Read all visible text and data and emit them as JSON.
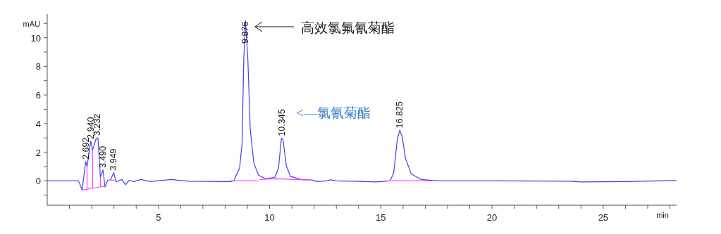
{
  "chart_data": {
    "type": "line",
    "xlabel": "min",
    "ylabel": "mAU",
    "xlim": [
      0,
      28.3
    ],
    "ylim": [
      -1.7,
      11.65
    ],
    "xticks": [
      {
        "value": 1,
        "label": null
      },
      {
        "value": 2,
        "label": null
      },
      {
        "value": 3,
        "label": null
      },
      {
        "value": 4,
        "label": null
      },
      5,
      {
        "value": 6,
        "label": null
      },
      {
        "value": 7,
        "label": null
      },
      {
        "value": 8,
        "label": null
      },
      {
        "value": 9,
        "label": null
      },
      10,
      {
        "value": 11,
        "label": null
      },
      {
        "value": 12,
        "label": null
      },
      {
        "value": 13,
        "label": null
      },
      {
        "value": 14,
        "label": null
      },
      15,
      {
        "value": 16,
        "label": null
      },
      {
        "value": 17,
        "label": null
      },
      {
        "value": 18,
        "label": null
      },
      {
        "value": 19,
        "label": null
      },
      20,
      {
        "value": 21,
        "label": null
      },
      {
        "value": 22,
        "label": null
      },
      {
        "value": 23,
        "label": null
      },
      {
        "value": 24,
        "label": null
      },
      25,
      {
        "value": 26,
        "label": null
      },
      {
        "value": 27,
        "label": null
      },
      {
        "value": 28,
        "label": null
      }
    ],
    "yticks": [
      {
        "value": -1,
        "label": null
      },
      0,
      {
        "value": 1,
        "label": null
      },
      2,
      {
        "value": 3,
        "label": null
      },
      4,
      {
        "value": 5,
        "label": null
      },
      6,
      {
        "value": 7,
        "label": null
      },
      8,
      {
        "value": 9,
        "label": null
      },
      10,
      {
        "value": 11,
        "label": null
      }
    ],
    "series": [
      {
        "color": "#4040f0",
        "x": [
          0,
          1.41,
          1.57,
          1.73,
          1.79,
          1.96,
          2.04,
          2.2,
          2.28,
          2.39,
          2.51,
          2.6,
          2.72,
          2.84,
          2.99,
          3.1,
          3.36,
          3.52,
          3.68,
          3.9,
          4.21,
          4.63,
          5.58,
          6.33,
          8.23,
          8.39,
          8.65,
          8.76,
          8.84,
          8.91,
          9.02,
          9.13,
          9.29,
          9.5,
          9.82,
          10.24,
          10.4,
          10.53,
          10.6,
          10.75,
          10.93,
          11.4,
          11.93,
          12.14,
          12.57,
          12.73,
          13.0,
          14.79,
          15.42,
          15.58,
          15.74,
          15.85,
          15.96,
          16.11,
          16.37,
          16.8,
          17.54,
          20,
          23.5,
          24,
          26,
          28.3
        ],
        "values": [
          0,
          0,
          -0.65,
          1.35,
          1.0,
          2.77,
          2.15,
          2.95,
          3.0,
          0.25,
          0.75,
          -0.43,
          0.05,
          0.05,
          0.57,
          -0.07,
          0.1,
          -0.27,
          0.03,
          -0.05,
          0.1,
          -0.05,
          0.1,
          -0.03,
          -0.05,
          0,
          0.9,
          2.57,
          8.57,
          11.2,
          8.57,
          3.57,
          1.25,
          0.4,
          0.15,
          0.25,
          0.9,
          2.98,
          2.9,
          1.07,
          0.32,
          0.1,
          0.05,
          -0.05,
          0,
          0.07,
          0,
          -0.07,
          0,
          0.57,
          2.9,
          3.53,
          3.1,
          1.57,
          0.48,
          0.1,
          0,
          0,
          -0.03,
          -0.07,
          -0.05,
          0.02
        ]
      },
      {
        "color": "#ff40ff",
        "x": [
          1.57,
          2.62
        ],
        "values": [
          -0.65,
          -0.35
        ]
      },
      {
        "color": "#ff40ff",
        "x": [
          2.72,
          3.1
        ],
        "values": [
          0.05,
          0.05
        ]
      },
      {
        "color": "#ff40ff",
        "x": [
          8.2,
          9.5
        ],
        "values": [
          0,
          0
        ]
      },
      {
        "color": "#ff40ff",
        "x": [
          9.55,
          10.3,
          11.9
        ],
        "values": [
          0.1,
          0.15,
          0.05
        ]
      },
      {
        "color": "#ff40ff",
        "x": [
          15.2,
          17.3
        ],
        "values": [
          0,
          0
        ]
      },
      {
        "color": "#ff40ff",
        "x": [
          1.79,
          1.79
        ],
        "values": [
          -0.6,
          1.0
        ]
      },
      {
        "color": "#ff40ff",
        "x": [
          2.04,
          2.04
        ],
        "values": [
          -0.5,
          2.15
        ]
      },
      {
        "color": "#ff40ff",
        "x": [
          2.39,
          2.39
        ],
        "values": [
          -0.4,
          0.25
        ]
      }
    ],
    "annotations": [
      {
        "text": "2.692",
        "x": 1.73,
        "y": 1.35
      },
      {
        "text": "2.940",
        "x": 1.96,
        "y": 2.77
      },
      {
        "text": "3.232",
        "x": 2.25,
        "y": 3.0
      },
      {
        "text": "3.490",
        "x": 2.51,
        "y": 0.75
      },
      {
        "text": "3.949",
        "x": 2.99,
        "y": 0.57
      },
      {
        "text": "9.876",
        "x": 8.91,
        "y": 11.2
      },
      {
        "text": "10.345",
        "x": 10.55,
        "y": 2.98
      },
      {
        "text": "16.825",
        "x": 15.85,
        "y": 3.53
      },
      "高效氯氟氰菊酯",
      "<—氯氰菊酯"
    ]
  }
}
